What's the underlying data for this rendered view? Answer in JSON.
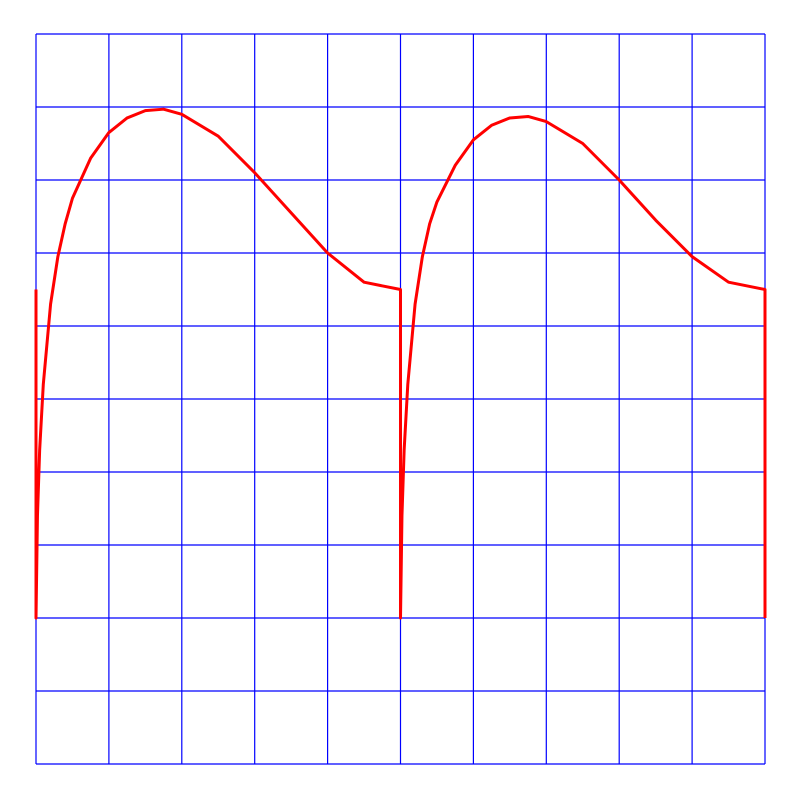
{
  "chart_data": {
    "type": "line",
    "title": "",
    "xlabel": "",
    "ylabel": "",
    "grid": true,
    "legend": "none",
    "xlim": [
      0,
      10
    ],
    "ylim": [
      -2,
      8
    ],
    "grid_x_step": 1,
    "grid_y_step": 1,
    "colors": {
      "grid": "#0000ff",
      "series": "#ff0000",
      "background": "#ffffff"
    },
    "series": [
      {
        "x": [
          0,
          0,
          0.02,
          0.05,
          0.1,
          0.2,
          0.3,
          0.4,
          0.5,
          0.75,
          1.0,
          1.25,
          1.5,
          1.75,
          2.0,
          2.5,
          3.0,
          3.5,
          4.0,
          4.5,
          5.0,
          5.0,
          5.0,
          5.02,
          5.05,
          5.1,
          5.2,
          5.3,
          5.4,
          5.5,
          5.75,
          6.0,
          6.25,
          6.5,
          6.75,
          7.0,
          7.5,
          8.0,
          8.5,
          9.0,
          9.5,
          10.0,
          10.0
        ],
        "y": [
          4.5,
          0,
          1.4,
          2.3,
          3.2,
          4.3,
          4.95,
          5.4,
          5.75,
          6.3,
          6.65,
          6.85,
          6.95,
          6.97,
          6.9,
          6.6,
          6.1,
          5.55,
          5.0,
          4.6,
          4.5,
          0,
          0,
          1.4,
          2.3,
          3.2,
          4.3,
          4.95,
          5.4,
          5.7,
          6.2,
          6.55,
          6.75,
          6.85,
          6.87,
          6.8,
          6.5,
          6.0,
          5.45,
          4.95,
          4.6,
          4.5,
          0
        ]
      }
    ]
  }
}
